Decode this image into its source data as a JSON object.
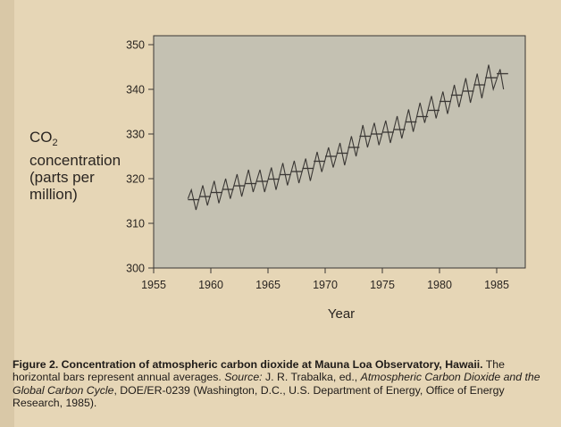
{
  "chart_data": {
    "type": "line",
    "title": "",
    "xlabel": "Year",
    "ylabel": {
      "prefix": "CO",
      "subscript": "2",
      "line2": "concentration",
      "line3": "(parts per",
      "line4": "million)"
    },
    "xlim": [
      1955,
      1987.5
    ],
    "ylim": [
      300,
      352
    ],
    "xticks": [
      1955,
      1960,
      1965,
      1970,
      1975,
      1980,
      1985
    ],
    "yticks": [
      300,
      310,
      320,
      330,
      340,
      350
    ],
    "grid": false,
    "plot_background": "#c4c1b2",
    "line_color": "#3a3734",
    "series": [
      {
        "kind": "monthly",
        "x": [
          1958.0,
          1958.3,
          1958.7,
          1959.3,
          1959.7,
          1960.3,
          1960.7,
          1961.3,
          1961.7,
          1962.3,
          1962.7,
          1963.3,
          1963.7,
          1964.3,
          1964.7,
          1965.3,
          1965.7,
          1966.3,
          1966.7,
          1967.3,
          1967.7,
          1968.3,
          1968.7,
          1969.3,
          1969.7,
          1970.3,
          1970.7,
          1971.3,
          1971.7,
          1972.3,
          1972.7,
          1973.3,
          1973.7,
          1974.3,
          1974.7,
          1975.3,
          1975.7,
          1976.3,
          1976.7,
          1977.3,
          1977.7,
          1978.3,
          1978.7,
          1979.3,
          1979.7,
          1980.3,
          1980.7,
          1981.3,
          1981.7,
          1982.3,
          1982.7,
          1983.3,
          1983.7,
          1984.3,
          1984.7,
          1985.3,
          1985.6
        ],
        "y": [
          315.5,
          317.5,
          313.0,
          318.5,
          314.0,
          319.5,
          314.5,
          320.0,
          315.5,
          321.0,
          316.0,
          322.0,
          317.0,
          322.0,
          317.0,
          322.5,
          317.5,
          323.5,
          318.5,
          324.0,
          319.0,
          324.5,
          319.5,
          326.0,
          321.5,
          327.0,
          322.5,
          328.0,
          323.0,
          329.5,
          325.0,
          332.0,
          327.0,
          332.5,
          327.5,
          333.0,
          328.0,
          334.0,
          329.0,
          335.5,
          330.5,
          337.0,
          332.5,
          338.5,
          333.5,
          339.5,
          334.5,
          341.0,
          336.0,
          342.5,
          337.0,
          343.5,
          338.0,
          345.5,
          340.0,
          344.5,
          340.0
        ]
      },
      {
        "kind": "annual_averages",
        "x": [
          1958,
          1959,
          1960,
          1961,
          1962,
          1963,
          1964,
          1965,
          1966,
          1967,
          1968,
          1969,
          1970,
          1971,
          1972,
          1973,
          1974,
          1975,
          1976,
          1977,
          1978,
          1979,
          1980,
          1981,
          1982,
          1983,
          1984,
          1985
        ],
        "y": [
          315.3,
          316.0,
          316.9,
          317.6,
          318.4,
          318.9,
          319.4,
          319.9,
          320.9,
          321.6,
          322.3,
          323.9,
          325.0,
          325.7,
          327.0,
          329.5,
          330.0,
          330.4,
          331.0,
          332.7,
          333.9,
          335.3,
          337.3,
          338.7,
          339.6,
          341.0,
          342.6,
          343.5
        ]
      }
    ]
  },
  "caption": {
    "bold": "Figure 2. Concentration of atmospheric carbon dioxide at Mauna Loa Observatory, Hawaii.",
    "text1": " The horizontal bars represent annual averages. ",
    "source_label": "Source:",
    "text2": " J. R. Trabalka, ed., ",
    "italic_title": "Atmospheric Carbon Dioxide and the Global Carbon Cycle",
    "text3": ", DOE/ER-0239 (Washington, D.C., U.S. Department of Energy, Office of Energy Research, 1985)."
  }
}
